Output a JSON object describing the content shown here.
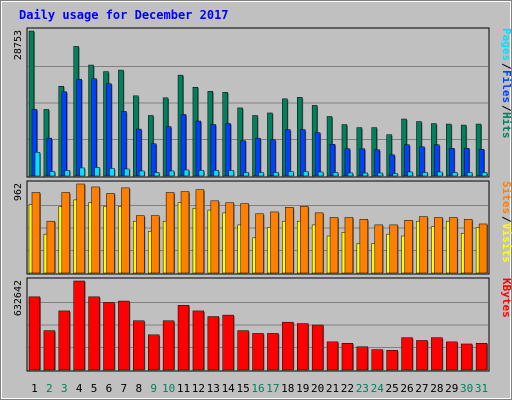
{
  "chart_data": {
    "type": "bar",
    "title": "Daily usage for December 2017",
    "categories": [
      "1",
      "2",
      "3",
      "4",
      "5",
      "6",
      "7",
      "8",
      "9",
      "10",
      "11",
      "12",
      "13",
      "14",
      "15",
      "16",
      "17",
      "18",
      "19",
      "20",
      "21",
      "22",
      "23",
      "24",
      "25",
      "26",
      "27",
      "28",
      "29",
      "30",
      "31"
    ],
    "weekend_days": [
      "2",
      "3",
      "9",
      "10",
      "16",
      "17",
      "23",
      "24",
      "30",
      "31"
    ],
    "panels": [
      {
        "ymax_label": "28753",
        "ymax": 28753,
        "legend": [
          {
            "label": "Pages",
            "color": "#00e0ff"
          },
          {
            "label": "Files",
            "color": "#0040ff"
          },
          {
            "label": "Hits",
            "color": "#00805c"
          }
        ],
        "series": [
          {
            "name": "Hits",
            "color": "#00805c",
            "values": [
              28753,
              13200,
              17800,
              25700,
              22000,
              20700,
              21000,
              15900,
              12000,
              15500,
              20000,
              17600,
              16800,
              16600,
              13500,
              12000,
              12500,
              15300,
              15600,
              14000,
              11800,
              10200,
              9600,
              9600,
              8200,
              11300,
              10800,
              10400,
              10300,
              10100,
              10300
            ]
          },
          {
            "name": "Files",
            "color": "#0040ff",
            "values": [
              13200,
              7500,
              16700,
              19200,
              19300,
              18300,
              12800,
              9300,
              6400,
              9800,
              12200,
              10900,
              10200,
              10400,
              7000,
              7500,
              7200,
              9200,
              9200,
              8600,
              6300,
              5400,
              5400,
              5200,
              4200,
              6200,
              5800,
              6200,
              5500,
              5500,
              5300
            ]
          },
          {
            "name": "Pages",
            "color": "#00e0ff",
            "values": [
              4700,
              900,
              1100,
              1600,
              1700,
              1500,
              1400,
              1000,
              700,
              1000,
              1200,
              1100,
              1100,
              1100,
              700,
              700,
              700,
              900,
              900,
              800,
              700,
              600,
              600,
              600,
              500,
              800,
              700,
              800,
              700,
              700,
              700
            ]
          }
        ]
      },
      {
        "ymax_label": "962",
        "ymax": 962,
        "legend": [
          {
            "label": "Sites",
            "color": "#ff8000"
          },
          {
            "label": "Visits",
            "color": "#ffff00"
          }
        ],
        "series": [
          {
            "name": "Visits",
            "color": "#ffff00",
            "values": [
              740,
              420,
              720,
              790,
              760,
              720,
              720,
              560,
              450,
              560,
              760,
              700,
              680,
              650,
              520,
              380,
              490,
              560,
              560,
              520,
              400,
              440,
              320,
              320,
              420,
              400,
              560,
              500,
              560,
              430,
              490
            ]
          },
          {
            "name": "Sites",
            "color": "#ff8000",
            "values": [
              870,
              560,
              870,
              962,
              930,
              860,
              920,
              620,
              620,
              870,
              880,
              900,
              780,
              760,
              750,
              640,
              660,
              710,
              720,
              650,
              600,
              600,
              580,
              520,
              520,
              570,
              610,
              600,
              600,
              580,
              530
            ]
          }
        ]
      },
      {
        "ymax_label": "632642",
        "ymax": 632642,
        "legend": [
          {
            "label": "KBytes",
            "color": "#ff0000"
          }
        ],
        "series": [
          {
            "name": "KBytes",
            "color": "#ff0000",
            "values": [
              520000,
              280000,
              420000,
              632642,
              520000,
              480000,
              490000,
              350000,
              250000,
              350000,
              460000,
              420000,
              380000,
              390000,
              280000,
              260000,
              260000,
              340000,
              330000,
              320000,
              200000,
              190000,
              165000,
              145000,
              140000,
              230000,
              210000,
              230000,
              200000,
              185000,
              190000
            ]
          }
        ]
      }
    ]
  }
}
